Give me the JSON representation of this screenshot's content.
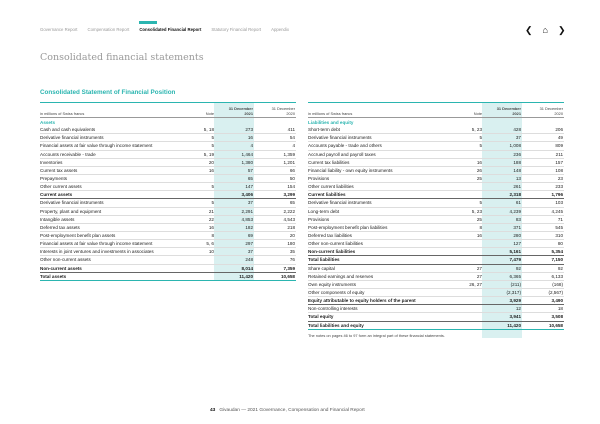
{
  "nav": {
    "tabs": [
      "Governance Report",
      "Compensation Report",
      "Consolidated Financial Report",
      "Statutory Financial Report",
      "Appendix"
    ],
    "active": 2,
    "icons": [
      "chevron-left-icon",
      "home-icon",
      "chevron-right-icon"
    ]
  },
  "page_title": "Consolidated financial statements",
  "section_title": "Consolidated Statement of Financial Position",
  "colors": {
    "accent": "#2bb5b0",
    "highlight": "#d9f0f0"
  },
  "left": {
    "header": {
      "label": "in millions of Swiss francs",
      "note": "Note",
      "c1a": "31 December",
      "c1b": "2021",
      "c2a": "31 December",
      "c2b": "2020"
    },
    "rows": [
      {
        "label": "Assets",
        "type": "sec"
      },
      {
        "label": "Cash and cash equivalents",
        "note": "5, 18",
        "v1": "273",
        "v2": "411"
      },
      {
        "label": "Derivative financial instruments",
        "note": "5",
        "v1": "16",
        "v2": "54"
      },
      {
        "label": "Financial assets at fair value through income statement",
        "note": "5",
        "v1": "4",
        "v2": "4"
      },
      {
        "label": "Accounts receivable - trade",
        "note": "5, 19",
        "v1": "1,464",
        "v2": "1,359"
      },
      {
        "label": "Inventories",
        "note": "20",
        "v1": "1,380",
        "v2": "1,201"
      },
      {
        "label": "Current tax assets",
        "note": "16",
        "v1": "57",
        "v2": "66"
      },
      {
        "label": "Prepayments",
        "note": "",
        "v1": "65",
        "v2": "50"
      },
      {
        "label": "Other current assets",
        "note": "5",
        "v1": "147",
        "v2": "154"
      },
      {
        "label": "Current assets",
        "note": "",
        "v1": "3,406",
        "v2": "3,299",
        "type": "b"
      },
      {
        "label": "Derivative financial instruments",
        "note": "5",
        "v1": "37",
        "v2": "65"
      },
      {
        "label": "Property, plant and equipment",
        "note": "21",
        "v1": "2,291",
        "v2": "2,222"
      },
      {
        "label": "Intangible assets",
        "note": "22",
        "v1": "4,853",
        "v2": "4,543"
      },
      {
        "label": "Deferred tax assets",
        "note": "16",
        "v1": "182",
        "v2": "218"
      },
      {
        "label": "Post-employment benefit plan assets",
        "note": "8",
        "v1": "69",
        "v2": "20"
      },
      {
        "label": "Financial assets at fair value through income statement",
        "note": "5, 6",
        "v1": "297",
        "v2": "180"
      },
      {
        "label": "Interests in joint ventures and investments in associates",
        "note": "10",
        "v1": "37",
        "v2": "35"
      },
      {
        "label": "Other non-current assets",
        "note": "",
        "v1": "248",
        "v2": "76"
      },
      {
        "label": "Non-current assets",
        "note": "",
        "v1": "8,014",
        "v2": "7,359",
        "type": "b"
      },
      {
        "label": "Total assets",
        "note": "",
        "v1": "11,420",
        "v2": "10,658",
        "type": "b total"
      }
    ]
  },
  "right": {
    "header": {
      "label": "in millions of Swiss francs",
      "note": "Note",
      "c1a": "31 December",
      "c1b": "2021",
      "c2a": "31 December",
      "c2b": "2020"
    },
    "rows": [
      {
        "label": "Liabilities and equity",
        "type": "sec"
      },
      {
        "label": "Short-term debt",
        "note": "5, 23",
        "v1": "428",
        "v2": "206"
      },
      {
        "label": "Derivative financial instruments",
        "note": "5",
        "v1": "37",
        "v2": "49"
      },
      {
        "label": "Accounts payable - trade and others",
        "note": "5",
        "v1": "1,008",
        "v2": "809"
      },
      {
        "label": "Accrued payroll and payroll taxes",
        "note": "",
        "v1": "236",
        "v2": "211"
      },
      {
        "label": "Current tax liabilities",
        "note": "16",
        "v1": "188",
        "v2": "157"
      },
      {
        "label": "Financial liability - own equity instruments",
        "note": "26",
        "v1": "148",
        "v2": "108"
      },
      {
        "label": "Provisions",
        "note": "25",
        "v1": "13",
        "v2": "23"
      },
      {
        "label": "Other current liabilities",
        "note": "",
        "v1": "261",
        "v2": "233"
      },
      {
        "label": "Current liabilities",
        "note": "",
        "v1": "2,318",
        "v2": "1,796",
        "type": "b"
      },
      {
        "label": "Derivative financial instruments",
        "note": "5",
        "v1": "61",
        "v2": "103"
      },
      {
        "label": "Long-term debt",
        "note": "5, 23",
        "v1": "4,239",
        "v2": "4,245"
      },
      {
        "label": "Provisions",
        "note": "25",
        "v1": "83",
        "v2": "71"
      },
      {
        "label": "Post-employment benefit plan liabilities",
        "note": "8",
        "v1": "371",
        "v2": "545"
      },
      {
        "label": "Deferred tax liabilities",
        "note": "16",
        "v1": "280",
        "v2": "310"
      },
      {
        "label": "Other non-current liabilities",
        "note": "",
        "v1": "127",
        "v2": "80"
      },
      {
        "label": "Non-current liabilities",
        "note": "",
        "v1": "5,161",
        "v2": "5,354",
        "type": "b"
      },
      {
        "label": "Total liabilities",
        "note": "",
        "v1": "7,479",
        "v2": "7,150",
        "type": "b"
      },
      {
        "label": "Share capital",
        "note": "27",
        "v1": "92",
        "v2": "92"
      },
      {
        "label": "Retained earnings and reserves",
        "note": "27",
        "v1": "6,365",
        "v2": "6,133"
      },
      {
        "label": "Own equity instruments",
        "note": "26, 27",
        "v1": "(211)",
        "v2": "(168)"
      },
      {
        "label": "Other components of equity",
        "note": "",
        "v1": "(2,317)",
        "v2": "(2,567)"
      },
      {
        "label": "Equity attributable to equity holders of the parent",
        "note": "",
        "v1": "3,929",
        "v2": "3,490",
        "type": "b"
      },
      {
        "label": "Non-controlling interests",
        "note": "",
        "v1": "12",
        "v2": "18"
      },
      {
        "label": "Total equity",
        "note": "",
        "v1": "3,941",
        "v2": "3,508",
        "type": "b"
      },
      {
        "label": "Total liabilities and equity",
        "note": "",
        "v1": "11,420",
        "v2": "10,658",
        "type": "b total"
      }
    ],
    "footnote": "The notes on pages 46 to 97 form an integral part of these financial statements."
  },
  "footer": {
    "page": "43",
    "text": "Givaudan — 2021 Governance, Compensation and Financial Report"
  }
}
